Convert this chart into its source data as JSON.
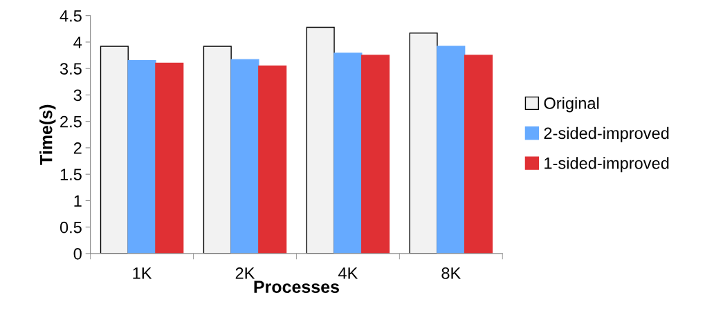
{
  "chart_data": {
    "type": "bar",
    "xlabel": "Processes",
    "ylabel": "Time(s)",
    "categories": [
      "1K",
      "2K",
      "4K",
      "8K"
    ],
    "series": [
      {
        "name": "Original",
        "color": "#f2f2f2",
        "values": [
          3.92,
          3.92,
          4.28,
          4.17
        ]
      },
      {
        "name": "2-sided-improved",
        "color": "#66aaff",
        "values": [
          3.65,
          3.67,
          3.79,
          3.92
        ]
      },
      {
        "name": "1-sided-improved",
        "color": "#e03034",
        "values": [
          3.6,
          3.55,
          3.75,
          3.75
        ]
      }
    ],
    "ylim": [
      0,
      4.5
    ],
    "yticks": [
      0,
      0.5,
      1,
      1.5,
      2,
      2.5,
      3,
      3.5,
      4,
      4.5
    ],
    "grid": false,
    "legend": "right"
  }
}
